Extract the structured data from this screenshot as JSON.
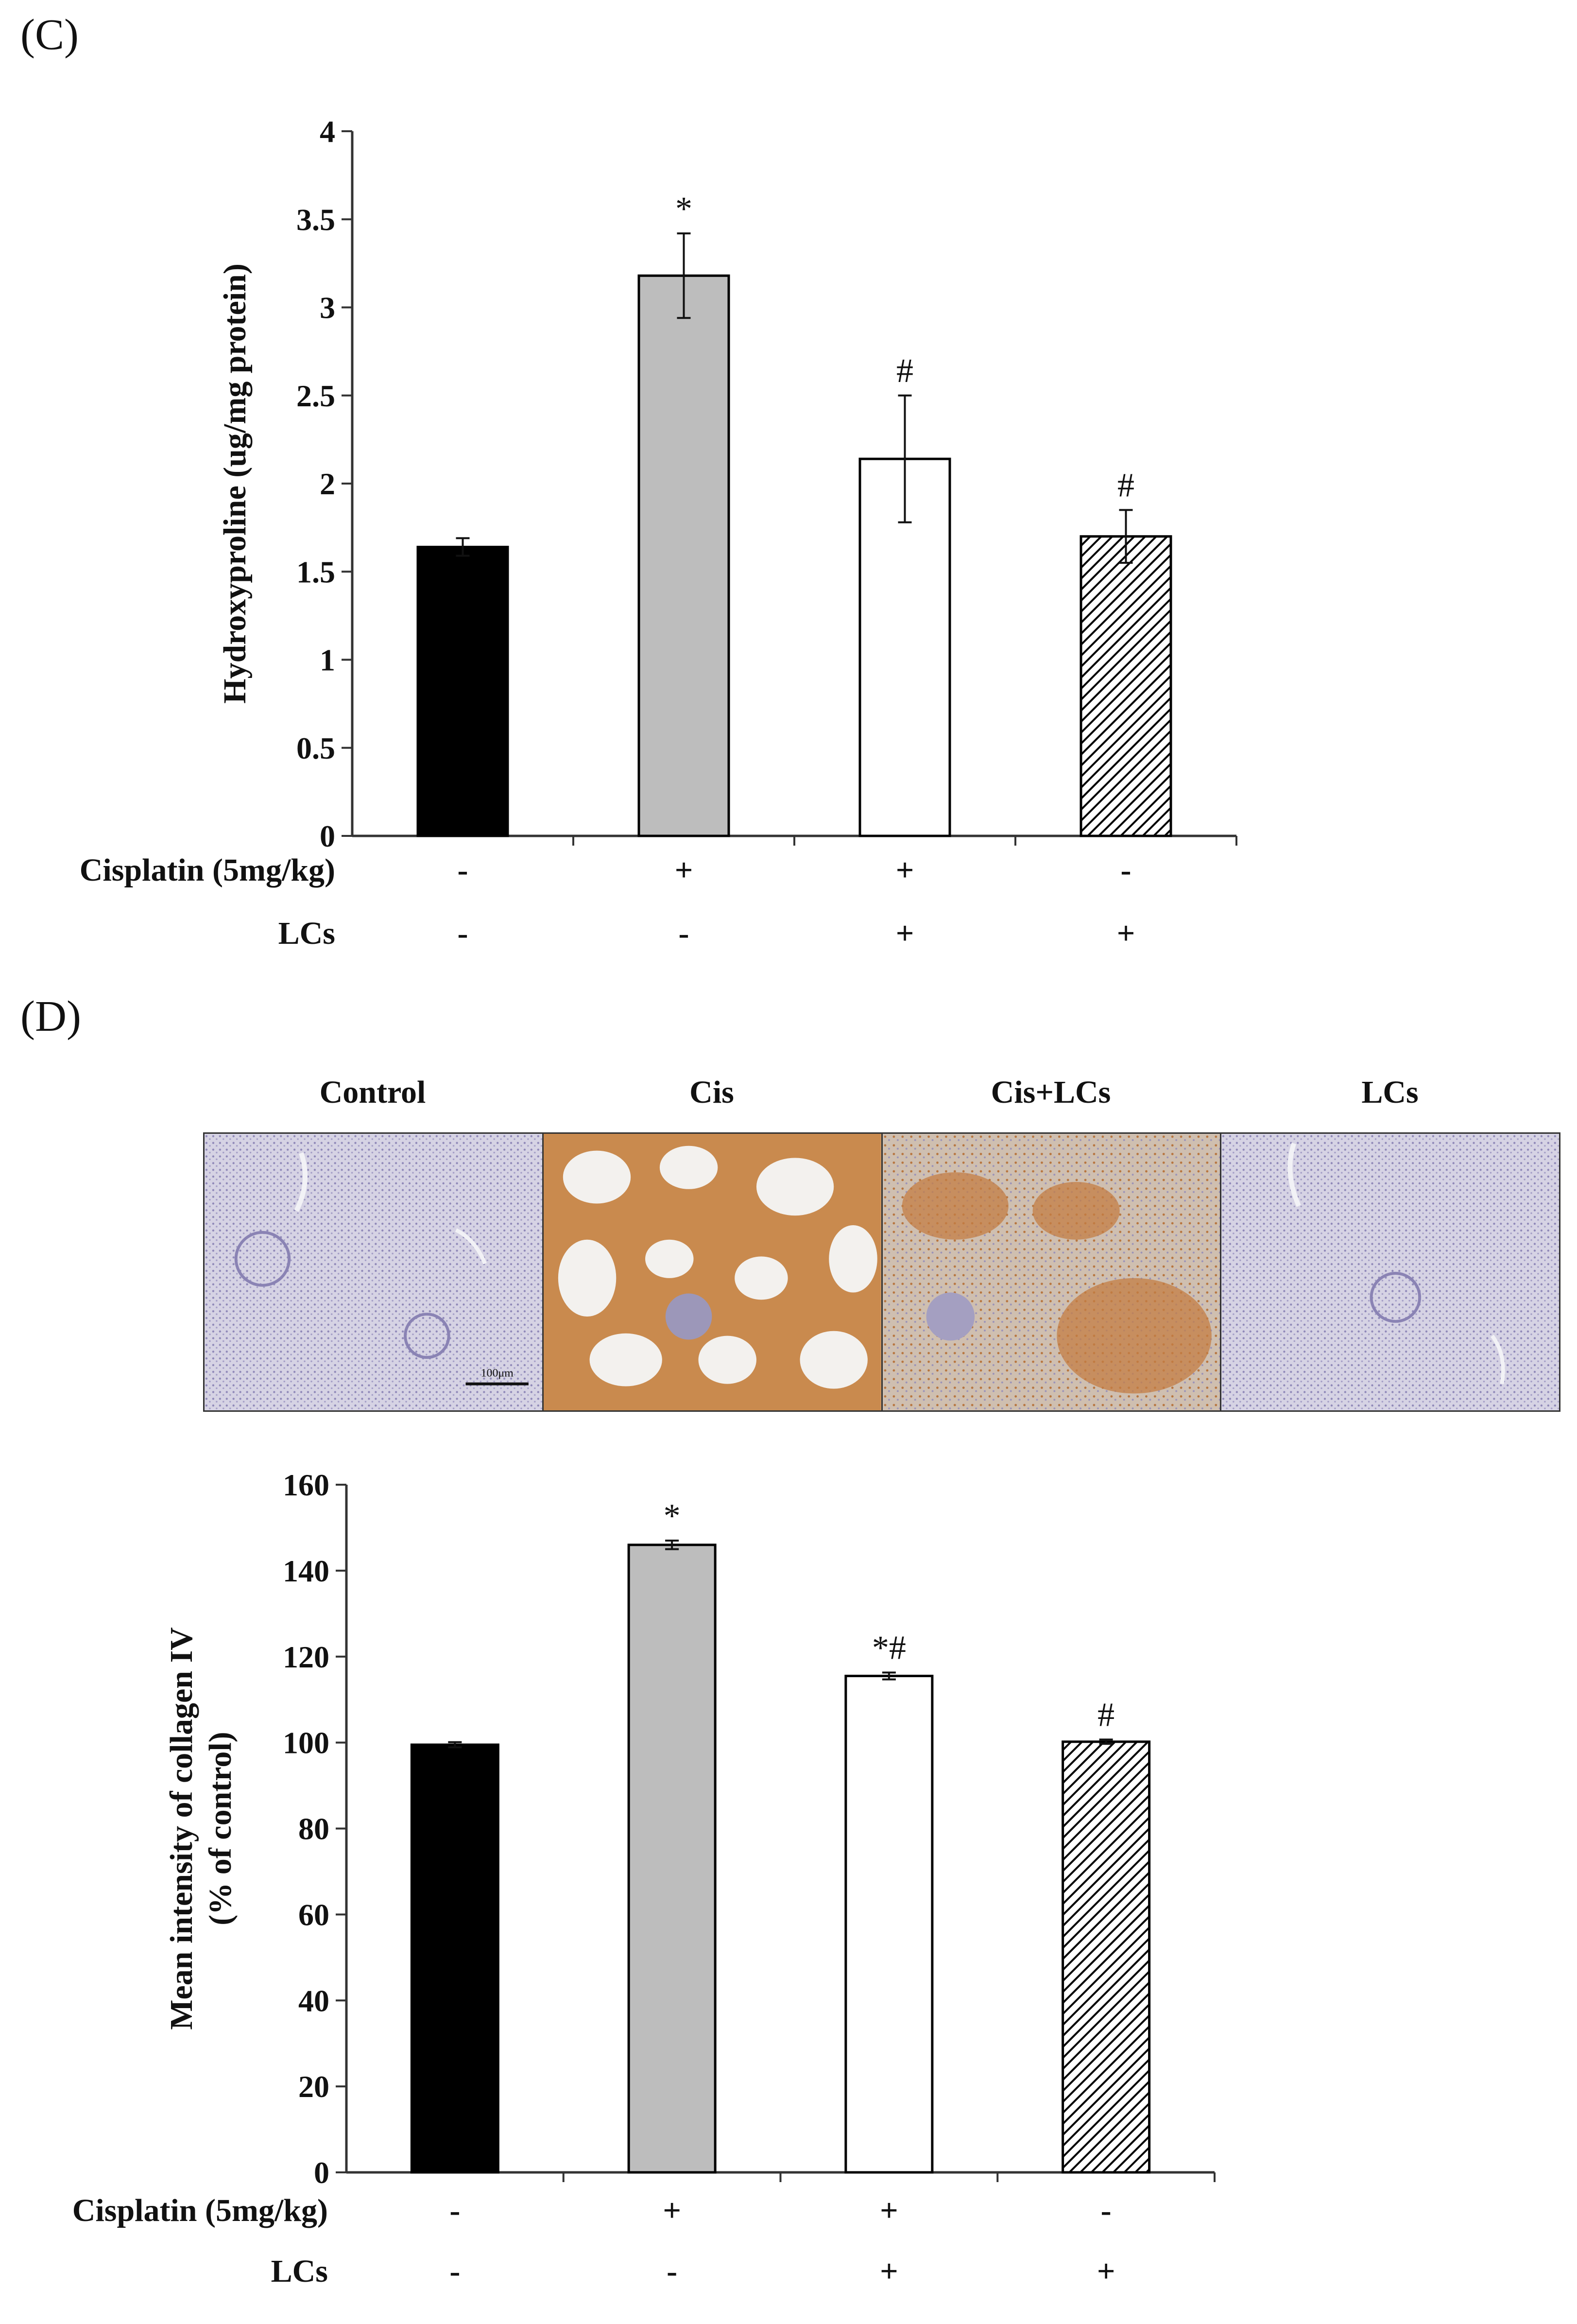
{
  "panel_c_label": "(C)",
  "panel_d_label": "(D)",
  "micrograph_titles": [
    "Control",
    "Cis",
    "Cis+LCs",
    "LCs"
  ],
  "scale_bar_label": "100μm",
  "colors": {
    "control": "#000000",
    "cis": "#bdbdbd",
    "cis_lcs": "#ffffff",
    "lcs": "hatch"
  },
  "chart_data": [
    {
      "type": "bar",
      "ylabel": "Hydroxyproline (ug/mg protein)",
      "ylim": [
        0,
        4
      ],
      "yticks": [
        "0",
        "0.5",
        "1",
        "1.5",
        "2",
        "2.5",
        "3",
        "3.5",
        "4"
      ],
      "values": [
        1.64,
        3.18,
        2.14,
        1.7
      ],
      "errors": [
        0.05,
        0.24,
        0.36,
        0.15
      ],
      "significance": [
        "",
        "*",
        "#",
        "#"
      ],
      "conditions": [
        {
          "label": "Cisplatin (5mg/kg)",
          "marks": [
            "-",
            "+",
            "+",
            "-"
          ]
        },
        {
          "label": "LCs",
          "marks": [
            "-",
            "-",
            "+",
            "+"
          ]
        }
      ],
      "grid": false
    },
    {
      "type": "bar",
      "ylabel": [
        "Mean intensity of collagen IV",
        "(% of control)"
      ],
      "ylim": [
        0,
        160
      ],
      "yticks": [
        "0",
        "20",
        "40",
        "60",
        "80",
        "100",
        "120",
        "140",
        "160"
      ],
      "values": [
        99.5,
        146,
        115.5,
        100.2
      ],
      "errors": [
        0.6,
        1.0,
        0.8,
        0.5
      ],
      "significance": [
        "",
        "*",
        "*#",
        "#"
      ],
      "conditions": [
        {
          "label": "Cisplatin (5mg/kg)",
          "marks": [
            "-",
            "+",
            "+",
            "-"
          ]
        },
        {
          "label": "LCs",
          "marks": [
            "-",
            "-",
            "+",
            "+"
          ]
        }
      ],
      "grid": false
    }
  ]
}
